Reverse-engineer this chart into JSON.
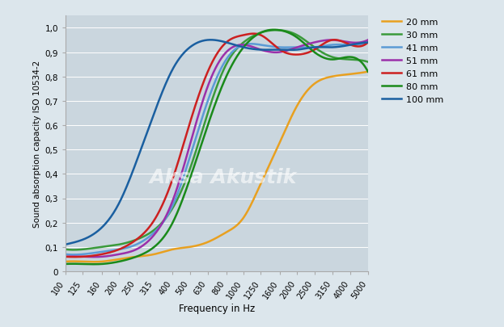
{
  "title": "",
  "xlabel": "Frequency in Hz",
  "ylabel": "Sound absorption capacity ISO 10534-2",
  "background_color": "#cad6de",
  "fig_background": "#dce6ec",
  "watermark": "Aksa Akustik",
  "freq_ticks": [
    100,
    125,
    160,
    200,
    250,
    315,
    400,
    500,
    630,
    800,
    1000,
    1250,
    1600,
    2000,
    2500,
    3150,
    4000,
    5000
  ],
  "yticks": [
    0,
    0.1,
    0.2,
    0.3,
    0.4,
    0.5,
    0.6,
    0.7,
    0.8,
    0.9,
    1.0
  ],
  "ytick_labels": [
    "0",
    "0,1",
    "0,2",
    "0,3",
    "0,4",
    "0,5",
    "0,6",
    "0,7",
    "0,8",
    "0,9",
    "1,0"
  ],
  "series": [
    {
      "label": "20 mm",
      "color": "#e8a020",
      "lw": 1.8,
      "points_freq": [
        100,
        125,
        160,
        200,
        250,
        315,
        400,
        500,
        630,
        800,
        1000,
        1250,
        1600,
        2000,
        2500,
        3150,
        4000,
        5000
      ],
      "points_val": [
        0.04,
        0.04,
        0.04,
        0.05,
        0.06,
        0.07,
        0.09,
        0.1,
        0.12,
        0.16,
        0.22,
        0.36,
        0.53,
        0.68,
        0.77,
        0.8,
        0.81,
        0.82
      ]
    },
    {
      "label": "30 mm",
      "color": "#3a9a3a",
      "lw": 1.8,
      "points_freq": [
        100,
        125,
        160,
        200,
        250,
        315,
        400,
        500,
        630,
        800,
        1000,
        1250,
        1600,
        2000,
        2500,
        3150,
        4000,
        5000
      ],
      "points_val": [
        0.09,
        0.09,
        0.1,
        0.11,
        0.13,
        0.17,
        0.26,
        0.42,
        0.65,
        0.85,
        0.94,
        0.98,
        0.99,
        0.97,
        0.92,
        0.88,
        0.87,
        0.86
      ]
    },
    {
      "label": "41 mm",
      "color": "#5b9bd5",
      "lw": 1.8,
      "points_freq": [
        100,
        125,
        160,
        200,
        250,
        315,
        400,
        500,
        630,
        800,
        1000,
        1250,
        1600,
        2000,
        2500,
        3150,
        4000,
        5000
      ],
      "points_val": [
        0.07,
        0.07,
        0.08,
        0.09,
        0.11,
        0.16,
        0.27,
        0.47,
        0.7,
        0.87,
        0.93,
        0.93,
        0.92,
        0.92,
        0.92,
        0.93,
        0.93,
        0.94
      ]
    },
    {
      "label": "51 mm",
      "color": "#9b30aa",
      "lw": 1.8,
      "points_freq": [
        100,
        125,
        160,
        200,
        250,
        315,
        400,
        500,
        630,
        800,
        1000,
        1250,
        1600,
        2000,
        2500,
        3150,
        4000,
        5000
      ],
      "points_val": [
        0.06,
        0.06,
        0.06,
        0.07,
        0.09,
        0.15,
        0.29,
        0.52,
        0.76,
        0.9,
        0.93,
        0.91,
        0.9,
        0.92,
        0.94,
        0.95,
        0.94,
        0.95
      ]
    },
    {
      "label": "61 mm",
      "color": "#cc2020",
      "lw": 1.8,
      "points_freq": [
        100,
        125,
        160,
        200,
        250,
        315,
        400,
        500,
        630,
        800,
        1000,
        1250,
        1600,
        2000,
        2500,
        3150,
        4000,
        5000
      ],
      "points_val": [
        0.06,
        0.06,
        0.07,
        0.09,
        0.13,
        0.21,
        0.38,
        0.61,
        0.82,
        0.94,
        0.97,
        0.97,
        0.91,
        0.89,
        0.91,
        0.95,
        0.93,
        0.94
      ]
    },
    {
      "label": "80 mm",
      "color": "#1a8a1a",
      "lw": 1.8,
      "points_freq": [
        100,
        125,
        160,
        200,
        250,
        315,
        400,
        500,
        630,
        800,
        1000,
        1250,
        1600,
        2000,
        2500,
        3150,
        4000,
        5000
      ],
      "points_val": [
        0.03,
        0.03,
        0.03,
        0.04,
        0.06,
        0.1,
        0.2,
        0.38,
        0.6,
        0.8,
        0.92,
        0.98,
        0.99,
        0.96,
        0.9,
        0.87,
        0.88,
        0.82
      ]
    },
    {
      "label": "100 mm",
      "color": "#1a5fa0",
      "lw": 1.8,
      "points_freq": [
        100,
        125,
        160,
        200,
        250,
        315,
        400,
        500,
        630,
        800,
        1000,
        1250,
        1600,
        2000,
        2500,
        3150,
        4000,
        5000
      ],
      "points_val": [
        0.11,
        0.13,
        0.18,
        0.28,
        0.45,
        0.65,
        0.83,
        0.92,
        0.95,
        0.94,
        0.92,
        0.91,
        0.91,
        0.91,
        0.92,
        0.92,
        0.93,
        0.94
      ]
    }
  ]
}
